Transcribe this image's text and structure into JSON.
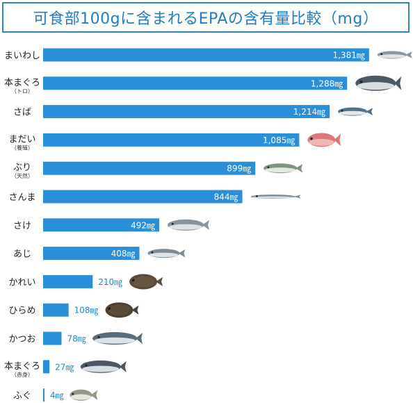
{
  "chart_data": {
    "type": "bar",
    "orientation": "horizontal",
    "title": "可食部100gに含まれるEPAの含有量比較（mg）",
    "unit": "㎎",
    "bar_color": "#2a8fd8",
    "value_color": "#1f87cf",
    "categories": [
      {
        "label": "まいわし",
        "sub": "",
        "value": 1381,
        "value_label": "1,381㎎",
        "fish": "sardine-icon"
      },
      {
        "label": "本まぐろ",
        "sub": "（トロ）",
        "value": 1288,
        "value_label": "1,288㎎",
        "fish": "tuna-icon"
      },
      {
        "label": "さば",
        "sub": "",
        "value": 1214,
        "value_label": "1,214㎎",
        "fish": "mackerel-icon"
      },
      {
        "label": "まだい",
        "sub": "（養殖）",
        "value": 1085,
        "value_label": "1,085㎎",
        "fish": "sea-bream-icon"
      },
      {
        "label": "ぶり",
        "sub": "（天然）",
        "value": 899,
        "value_label": "899㎎",
        "fish": "yellowtail-icon"
      },
      {
        "label": "さんま",
        "sub": "",
        "value": 844,
        "value_label": "844㎎",
        "fish": "saury-icon"
      },
      {
        "label": "さけ",
        "sub": "",
        "value": 492,
        "value_label": "492㎎",
        "fish": "salmon-icon"
      },
      {
        "label": "あじ",
        "sub": "",
        "value": 408,
        "value_label": "408㎎",
        "fish": "horse-mackerel-icon"
      },
      {
        "label": "かれい",
        "sub": "",
        "value": 210,
        "value_label": "210㎎",
        "fish": "flounder-icon"
      },
      {
        "label": "ひらめ",
        "sub": "",
        "value": 108,
        "value_label": "108㎎",
        "fish": "halibut-icon"
      },
      {
        "label": "かつお",
        "sub": "",
        "value": 78,
        "value_label": "78㎎",
        "fish": "bonito-icon"
      },
      {
        "label": "本まぐろ",
        "sub": "（赤身）",
        "value": 27,
        "value_label": "27㎎",
        "fish": "tuna-lean-icon"
      },
      {
        "label": "ふぐ",
        "sub": "",
        "value": 4,
        "value_label": "4㎎",
        "fish": "pufferfish-icon"
      }
    ]
  }
}
